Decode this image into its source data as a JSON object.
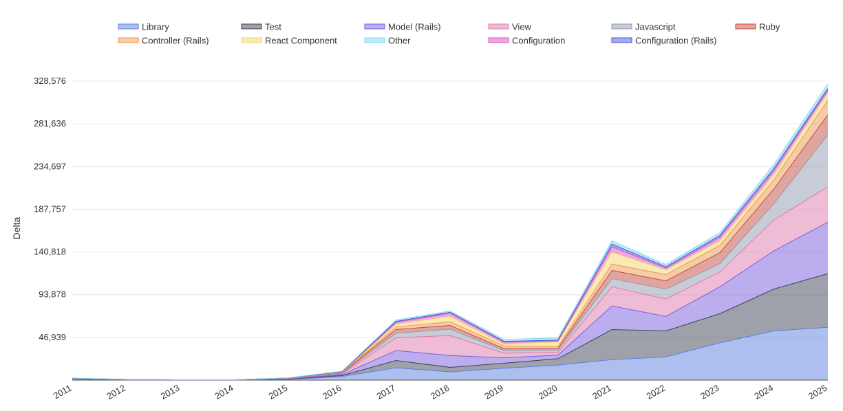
{
  "chart_data": {
    "type": "area",
    "stacked": true,
    "title": "",
    "xlabel": "",
    "ylabel": "Delta",
    "ylim": [
      0,
      328576
    ],
    "grid": true,
    "legend_position": "top",
    "x": [
      "2011",
      "2012",
      "2013",
      "2014",
      "2015",
      "2016",
      "2017",
      "2018",
      "2019",
      "2020",
      "2021",
      "2022",
      "2023",
      "2024",
      "2025"
    ],
    "y_ticks": [
      46939,
      93878,
      140818,
      187757,
      234697,
      281636,
      328576
    ],
    "y_tick_labels": [
      "46,939",
      "93,878",
      "140,818",
      "187,757",
      "234,697",
      "281,636",
      "328,576"
    ],
    "series": [
      {
        "name": "Library",
        "color": "#5b7fe0",
        "values": [
          1000,
          300,
          200,
          200,
          800,
          4000,
          13500,
          9000,
          13000,
          16500,
          22500,
          25500,
          41000,
          54000,
          58000
        ]
      },
      {
        "name": "Test",
        "color": "#3d4355",
        "values": [
          200,
          100,
          50,
          50,
          200,
          1000,
          8000,
          5000,
          5500,
          7000,
          33000,
          28500,
          32000,
          46000,
          59000
        ]
      },
      {
        "name": "Model (Rails)",
        "color": "#7a5ce0",
        "values": [
          300,
          100,
          50,
          50,
          300,
          1000,
          11000,
          13000,
          6000,
          4000,
          26000,
          16000,
          29500,
          42000,
          56500
        ]
      },
      {
        "name": "View",
        "color": "#e07aae",
        "values": [
          200,
          100,
          50,
          50,
          300,
          1000,
          14000,
          22000,
          5000,
          3000,
          21000,
          19000,
          16500,
          34000,
          39000
        ]
      },
      {
        "name": "Javascript",
        "color": "#8f99ad",
        "values": [
          100,
          50,
          0,
          0,
          200,
          500,
          5000,
          7000,
          3000,
          2500,
          9000,
          11000,
          9000,
          18000,
          57000
        ]
      },
      {
        "name": "Ruby",
        "color": "#c44b3f",
        "values": [
          100,
          50,
          0,
          0,
          200,
          600,
          4000,
          4000,
          2000,
          2000,
          9000,
          9000,
          12000,
          16000,
          22000
        ]
      },
      {
        "name": "Controller (Rails)",
        "color": "#ee9a4f",
        "values": [
          100,
          50,
          0,
          0,
          200,
          400,
          3000,
          4000,
          3000,
          2000,
          7000,
          7000,
          8000,
          10000,
          16000
        ]
      },
      {
        "name": "React Component",
        "color": "#f3d36b",
        "values": [
          0,
          0,
          0,
          0,
          0,
          0,
          3000,
          6000,
          2000,
          5000,
          13000,
          5000,
          5000,
          6000,
          8000
        ]
      },
      {
        "name": "Configuration",
        "color": "#d94fc4",
        "values": [
          50,
          0,
          0,
          0,
          100,
          500,
          2000,
          3500,
          2000,
          1000,
          6000,
          2000,
          4000,
          4000,
          3000
        ]
      },
      {
        "name": "Configuration (Rails)",
        "color": "#4557d8",
        "values": [
          50,
          0,
          0,
          0,
          100,
          300,
          1000,
          1000,
          1000,
          1000,
          3000,
          1500,
          2000,
          2500,
          2000
        ]
      },
      {
        "name": "Other",
        "color": "#7fd8f0",
        "values": [
          50,
          0,
          0,
          0,
          100,
          500,
          1500,
          1500,
          2000,
          2500,
          3500,
          2500,
          3000,
          4500,
          5000
        ]
      }
    ],
    "legend_order": [
      "Library",
      "Test",
      "Model (Rails)",
      "View",
      "Javascript",
      "Ruby",
      "Controller (Rails)",
      "React Component",
      "Other",
      "Configuration",
      "Configuration (Rails)"
    ]
  }
}
